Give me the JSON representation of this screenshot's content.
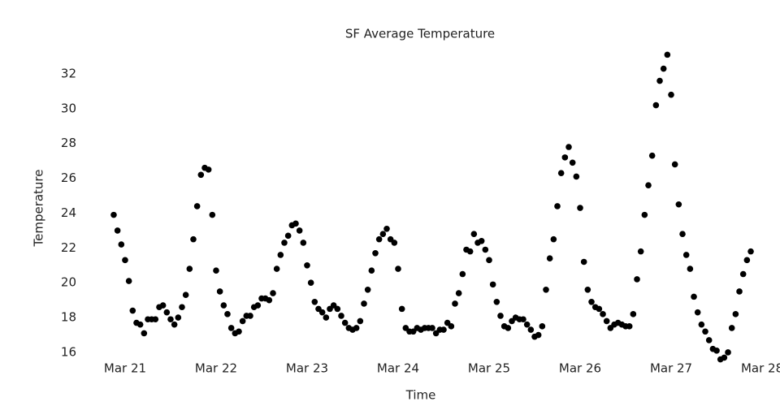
{
  "chart_data": {
    "type": "scatter",
    "title": "SF Average Temperature",
    "x_label": "Time",
    "y_label": "Temperature",
    "x": [
      -3,
      -2,
      -1,
      0,
      1,
      2,
      3,
      4,
      5,
      6,
      7,
      8,
      9,
      10,
      11,
      12,
      13,
      14,
      15,
      16,
      17,
      18,
      19,
      20,
      21,
      22,
      23,
      24,
      25,
      26,
      27,
      28,
      29,
      30,
      31,
      32,
      33,
      34,
      35,
      36,
      37,
      38,
      39,
      40,
      41,
      42,
      43,
      44,
      45,
      46,
      47,
      48,
      49,
      50,
      51,
      52,
      53,
      54,
      55,
      56,
      57,
      58,
      59,
      60,
      61,
      62,
      63,
      64,
      65,
      66,
      67,
      68,
      69,
      70,
      71,
      72,
      73,
      74,
      75,
      76,
      77,
      78,
      79,
      80,
      81,
      82,
      83,
      84,
      85,
      86,
      87,
      88,
      89,
      90,
      91,
      92,
      93,
      94,
      95,
      96,
      97,
      98,
      99,
      100,
      101,
      102,
      103,
      104,
      105,
      106,
      107,
      108,
      109,
      110,
      111,
      112,
      113,
      114,
      115,
      116,
      117,
      118,
      119,
      120,
      121,
      122,
      123,
      124,
      125,
      126,
      127,
      128,
      129,
      130,
      131,
      132,
      133,
      134,
      135,
      136,
      137,
      138,
      139,
      140,
      141,
      142,
      143,
      144,
      145,
      146,
      147,
      148,
      149,
      150,
      151,
      152,
      153,
      154,
      155,
      156,
      157,
      158,
      159,
      160,
      161,
      162,
      163,
      164,
      165
    ],
    "values": [
      23.9,
      23.0,
      22.2,
      21.3,
      20.1,
      18.4,
      17.7,
      17.6,
      17.1,
      17.9,
      17.9,
      17.9,
      18.6,
      18.7,
      18.3,
      17.9,
      17.6,
      18.0,
      18.6,
      19.3,
      20.8,
      22.5,
      24.4,
      26.2,
      26.6,
      26.5,
      23.9,
      20.7,
      19.5,
      18.7,
      18.2,
      17.4,
      17.1,
      17.2,
      17.8,
      18.1,
      18.1,
      18.6,
      18.7,
      19.1,
      19.1,
      19.0,
      19.4,
      20.8,
      21.6,
      22.3,
      22.7,
      23.3,
      23.4,
      23.0,
      22.3,
      21.0,
      20.0,
      18.9,
      18.5,
      18.3,
      18.0,
      18.5,
      18.7,
      18.5,
      18.1,
      17.7,
      17.4,
      17.3,
      17.4,
      17.8,
      18.8,
      19.6,
      20.7,
      21.7,
      22.5,
      22.8,
      23.1,
      22.5,
      22.3,
      20.8,
      18.5,
      17.4,
      17.2,
      17.2,
      17.4,
      17.3,
      17.4,
      17.4,
      17.4,
      17.1,
      17.3,
      17.3,
      17.7,
      17.5,
      18.8,
      19.4,
      20.5,
      21.9,
      21.8,
      22.8,
      22.3,
      22.4,
      21.9,
      21.3,
      19.9,
      18.9,
      18.1,
      17.5,
      17.4,
      17.8,
      18.0,
      17.9,
      17.9,
      17.6,
      17.3,
      16.9,
      17.0,
      17.5,
      19.6,
      21.4,
      22.5,
      24.4,
      26.3,
      27.2,
      27.8,
      26.9,
      26.1,
      24.3,
      21.2,
      19.6,
      18.9,
      18.6,
      18.5,
      18.2,
      17.8,
      17.4,
      17.6,
      17.7,
      17.6,
      17.5,
      17.5,
      18.2,
      20.2,
      21.8,
      23.9,
      25.6,
      27.3,
      30.2,
      31.6,
      32.3,
      33.1,
      30.8,
      26.8,
      24.5,
      22.8,
      21.6,
      20.8,
      19.2,
      18.3,
      17.6,
      17.2,
      16.7,
      16.2,
      16.1,
      15.6,
      15.7,
      16.0,
      17.4,
      18.2,
      19.5,
      20.5,
      21.3,
      21.8
    ],
    "color": "#000000",
    "xlim": [
      -7,
      172
    ],
    "xticks": [
      {
        "value": 0,
        "label": "Mar 21"
      },
      {
        "value": 24,
        "label": "Mar 22"
      },
      {
        "value": 48,
        "label": "Mar 23"
      },
      {
        "value": 72,
        "label": "Mar 24"
      },
      {
        "value": 96,
        "label": "Mar 25"
      },
      {
        "value": 120,
        "label": "Mar 26"
      },
      {
        "value": 144,
        "label": "Mar 27"
      },
      {
        "value": 168,
        "label": "Mar 28"
      }
    ],
    "ylim": [
      15.5,
      33.5
    ],
    "yticks": [
      16,
      18,
      20,
      22,
      24,
      26,
      28,
      30,
      32
    ],
    "grid": false
  }
}
